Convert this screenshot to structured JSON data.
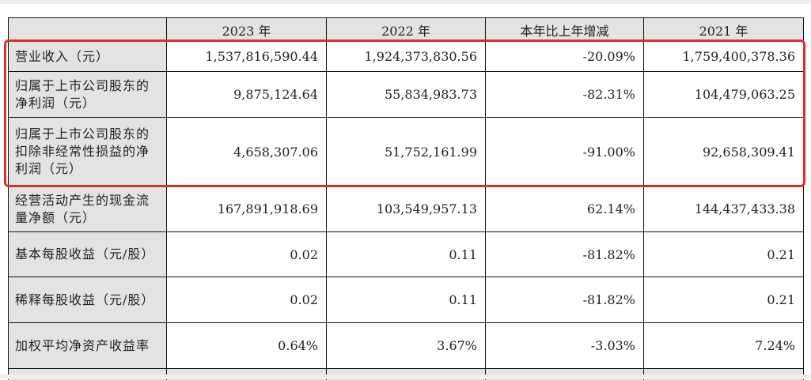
{
  "table": {
    "headers": [
      "",
      "2023 年",
      "2022 年",
      "本年比上年增减",
      "2021 年"
    ],
    "rows": [
      {
        "label": "营业收入（元）",
        "values": [
          "1,537,816,590.44",
          "1,924,373,830.56",
          "-20.09%",
          "1,759,400,378.36"
        ]
      },
      {
        "label": "归属于上市公司股东的净利润（元）",
        "values": [
          "9,875,124.64",
          "55,834,983.73",
          "-82.31%",
          "104,479,063.25"
        ]
      },
      {
        "label": "归属于上市公司股东的扣除非经常性损益的净利润（元）",
        "values": [
          "4,658,307.06",
          "51,752,161.99",
          "-91.00%",
          "92,658,309.41"
        ]
      },
      {
        "label": "经营活动产生的现金流量净额（元）",
        "values": [
          "167,891,918.69",
          "103,549,957.13",
          "62.14%",
          "144,437,433.38"
        ]
      },
      {
        "label": "基本每股收益（元/股）",
        "values": [
          "0.02",
          "0.11",
          "-81.82%",
          "0.21"
        ]
      },
      {
        "label": "稀释每股收益（元/股）",
        "values": [
          "0.02",
          "0.11",
          "-81.82%",
          "0.21"
        ]
      },
      {
        "label": "加权平均净资产收益率",
        "values": [
          "0.64%",
          "3.67%",
          "-3.03%",
          "7.24%"
        ]
      }
    ]
  },
  "highlight": {
    "color": "#d9302a",
    "rows_highlighted": 3
  }
}
